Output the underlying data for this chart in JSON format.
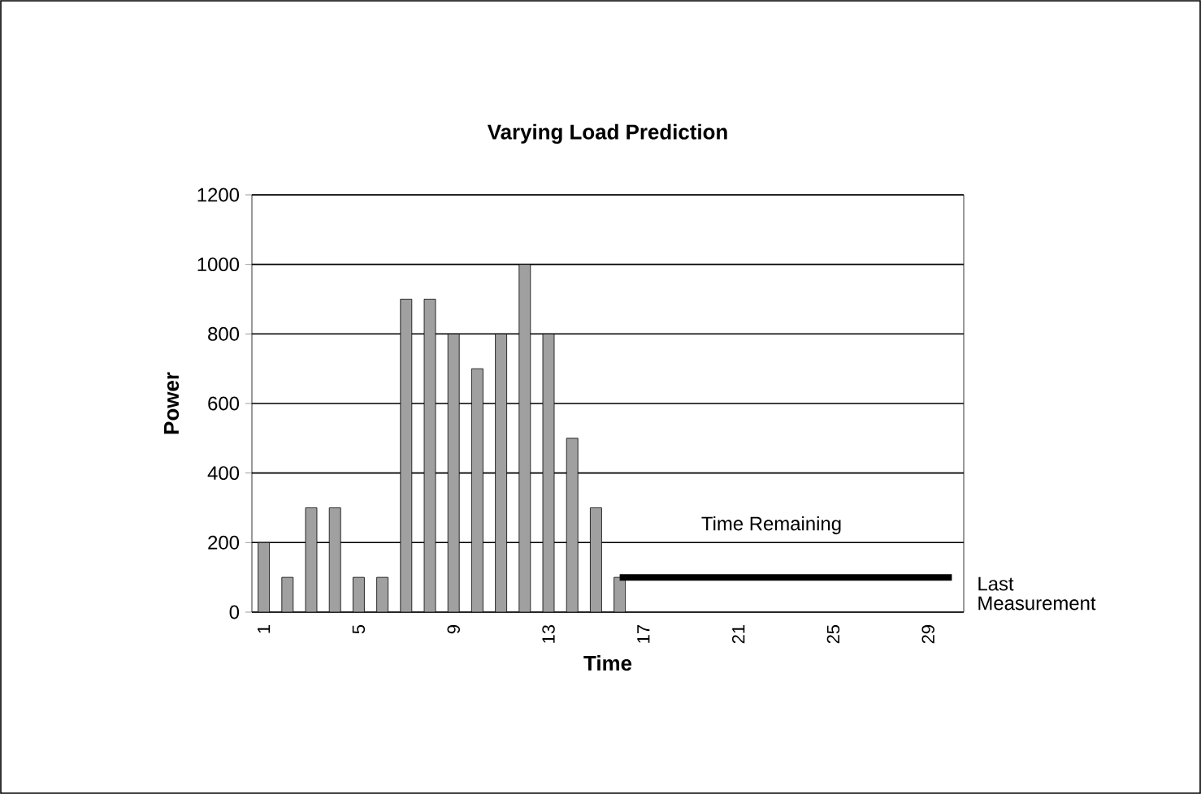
{
  "chart_data": {
    "type": "bar",
    "title": "Varying Load Prediction",
    "xlabel": "Time",
    "ylabel": "Power",
    "categories": [
      "1",
      null,
      null,
      null,
      "5",
      null,
      null,
      null,
      "9",
      null,
      null,
      null,
      "13",
      null,
      null,
      null,
      "17",
      null,
      null,
      null,
      "21",
      null,
      null,
      null,
      "25",
      null,
      null,
      null,
      "29",
      null
    ],
    "series": [
      {
        "color": "#a0a0a0",
        "values": [
          200,
          100,
          300,
          300,
          100,
          100,
          900,
          900,
          800,
          700,
          800,
          1000,
          800,
          500,
          300,
          100,
          null,
          null,
          null,
          null,
          null,
          null,
          null,
          null,
          null,
          null,
          null,
          null,
          null,
          null
        ]
      },
      {
        "type": "line",
        "name": "Last Measurement",
        "color": "#000000",
        "values": [
          null,
          null,
          null,
          null,
          null,
          null,
          null,
          null,
          null,
          null,
          null,
          null,
          null,
          null,
          null,
          100,
          100,
          100,
          100,
          100,
          100,
          100,
          100,
          100,
          100,
          100,
          100,
          100,
          100,
          100
        ]
      }
    ],
    "annotations": [
      "Time Remaining"
    ],
    "ylim": [
      0,
      1200
    ],
    "yticks": [
      0,
      200,
      400,
      600,
      800,
      1000,
      1200
    ],
    "grid": "y",
    "legend": false
  }
}
